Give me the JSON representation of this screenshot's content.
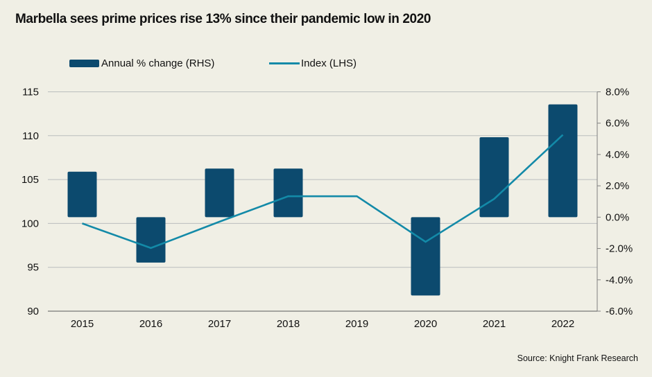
{
  "title": "Marbella sees prime prices rise 13% since their pandemic low in 2020",
  "source": "Source: Knight Frank Research",
  "colors": {
    "background": "#f0efe5",
    "bar": "#0c4a6e",
    "line": "#138aa8",
    "grid": "#b9bdbd",
    "axis": "#7f7f7f"
  },
  "chart_data": {
    "type": "bar+line",
    "title": "Marbella sees prime prices rise 13% since their pandemic low in 2020",
    "categories": [
      "2015",
      "2016",
      "2017",
      "2018",
      "2019",
      "2020",
      "2021",
      "2022"
    ],
    "series": [
      {
        "name": "Annual % change (RHS)",
        "type": "bar",
        "axis": "right",
        "values": [
          2.9,
          -2.9,
          3.1,
          3.1,
          0.0,
          -5.0,
          5.1,
          7.2
        ]
      },
      {
        "name": "Index (LHS)",
        "type": "line",
        "axis": "left",
        "values": [
          100.0,
          97.2,
          100.2,
          103.1,
          103.1,
          97.9,
          102.8,
          110.1
        ]
      }
    ],
    "left_axis": {
      "range": [
        90,
        115
      ],
      "ticks": [
        90,
        95,
        100,
        105,
        110,
        115
      ],
      "tick_labels": [
        "90",
        "95",
        "100",
        "105",
        "110",
        "115"
      ]
    },
    "right_axis": {
      "range": [
        -6,
        8
      ],
      "ticks": [
        -6,
        -4,
        -2,
        0,
        2,
        4,
        6,
        8
      ],
      "tick_labels": [
        "-6.0%",
        "-4.0%",
        "-2.0%",
        "0.0%",
        "2.0%",
        "4.0%",
        "6.0%",
        "8.0%"
      ]
    },
    "xlabel": "",
    "ylabel_left": "",
    "ylabel_right": "",
    "grid": true,
    "legend_position": "top"
  }
}
